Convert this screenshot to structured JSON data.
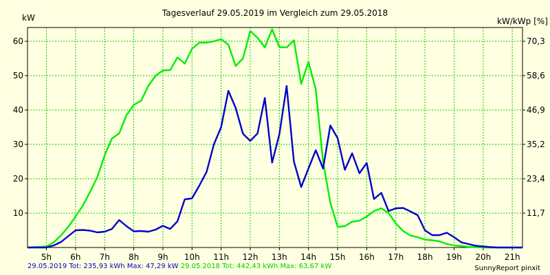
{
  "chart_data": {
    "type": "line",
    "title": "Tagesverlauf 29.05.2019 im Vergleich zum 29.05.2018",
    "ylabel_left": "kW",
    "ylabel_right": "kW/kWp [%]",
    "x_ticks": [
      "5h",
      "6h",
      "7h",
      "8h",
      "9h",
      "10h",
      "11h",
      "12h",
      "13h",
      "14h",
      "15h",
      "16h",
      "17h",
      "18h",
      "19h",
      "20h",
      "21h"
    ],
    "xlim": [
      4.35,
      21.35
    ],
    "ylim": [
      0,
      64
    ],
    "y_ticks_left": [
      10,
      20,
      30,
      40,
      50,
      60
    ],
    "y_ticks_right": [
      "11,7",
      "23,4",
      "35,2",
      "46,9",
      "58,6",
      "70,3"
    ],
    "grid": true,
    "series": [
      {
        "name": "29.05.2019",
        "color": "#0000cc",
        "x": [
          4.35,
          5.0,
          5.25,
          5.5,
          5.75,
          6.0,
          6.25,
          6.5,
          6.75,
          7.0,
          7.25,
          7.5,
          7.75,
          8.0,
          8.25,
          8.5,
          8.75,
          9.0,
          9.25,
          9.5,
          9.75,
          10.0,
          10.25,
          10.5,
          10.75,
          11.0,
          11.25,
          11.5,
          11.75,
          12.0,
          12.25,
          12.5,
          12.75,
          13.0,
          13.25,
          13.5,
          13.75,
          14.0,
          14.25,
          14.5,
          14.75,
          15.0,
          15.25,
          15.5,
          15.75,
          16.0,
          16.25,
          16.5,
          16.75,
          17.0,
          17.25,
          17.5,
          17.75,
          18.0,
          18.25,
          18.5,
          18.75,
          19.0,
          19.25,
          19.5,
          19.75,
          20.0,
          20.25,
          20.5,
          21.35
        ],
        "values": [
          0,
          0,
          0.6,
          1.6,
          3.3,
          5.0,
          5.1,
          4.9,
          4.4,
          4.6,
          5.4,
          8.0,
          6.2,
          4.7,
          4.8,
          4.6,
          5.2,
          6.3,
          5.4,
          7.6,
          14.0,
          14.3,
          18.0,
          22.0,
          30.0,
          35.0,
          45.6,
          40.6,
          33.1,
          31.0,
          33.2,
          43.5,
          24.7,
          33.0,
          47.0,
          25.0,
          17.6,
          23.0,
          28.3,
          23.0,
          35.5,
          31.8,
          22.6,
          27.4,
          21.6,
          24.6,
          14.1,
          15.9,
          10.6,
          11.4,
          11.5,
          10.5,
          9.4,
          5.0,
          3.6,
          3.6,
          4.3,
          3.0,
          1.5,
          1.0,
          0.5,
          0.3,
          0.1,
          0,
          0
        ]
      },
      {
        "name": "29.05.2018",
        "color": "#00ee00",
        "x": [
          4.35,
          5.0,
          5.25,
          5.5,
          5.75,
          6.0,
          6.25,
          6.5,
          6.75,
          7.0,
          7.25,
          7.5,
          7.75,
          8.0,
          8.25,
          8.5,
          8.75,
          9.0,
          9.25,
          9.5,
          9.75,
          10.0,
          10.25,
          10.5,
          10.75,
          11.0,
          11.25,
          11.5,
          11.75,
          12.0,
          12.25,
          12.5,
          12.75,
          13.0,
          13.25,
          13.5,
          13.75,
          14.0,
          14.25,
          14.5,
          14.75,
          15.0,
          15.25,
          15.5,
          15.75,
          16.0,
          16.25,
          16.5,
          16.75,
          17.0,
          17.25,
          17.5,
          17.75,
          18.0,
          18.25,
          18.5,
          18.75,
          19.0,
          19.25,
          19.5,
          19.75,
          20.0,
          20.25,
          20.5,
          21.35
        ],
        "values": [
          0,
          0.3,
          1.5,
          3.5,
          6.0,
          9.0,
          12.2,
          16.2,
          20.5,
          26.8,
          31.7,
          33.2,
          38.5,
          41.5,
          42.7,
          47.0,
          50.0,
          51.5,
          51.6,
          55.3,
          53.5,
          57.8,
          59.6,
          59.6,
          60.0,
          60.6,
          59.0,
          52.8,
          55.0,
          63.0,
          61.0,
          58.2,
          63.5,
          58.3,
          58.2,
          60.3,
          47.6,
          54.0,
          46.0,
          25.0,
          13.0,
          6.0,
          6.2,
          7.5,
          7.8,
          9.0,
          10.6,
          11.4,
          10.0,
          7.0,
          4.8,
          3.5,
          3.0,
          2.3,
          2.1,
          1.8,
          1.0,
          0.6,
          0.4,
          0.2,
          0.1,
          0,
          0,
          0,
          0
        ]
      }
    ]
  },
  "footer": {
    "series1_text": "29.05.2019 Tot: 235,93 kWh Max: 47,29 kW",
    "series2_text": "29.05.2018 Tot: 442,43 kWh Max: 63,67 kW",
    "credit": "SunnyReport pinxit"
  },
  "colors": {
    "background": "#ffffe1",
    "grid": "#00cc00",
    "series1": "#0000cc",
    "series2": "#00ee00"
  }
}
